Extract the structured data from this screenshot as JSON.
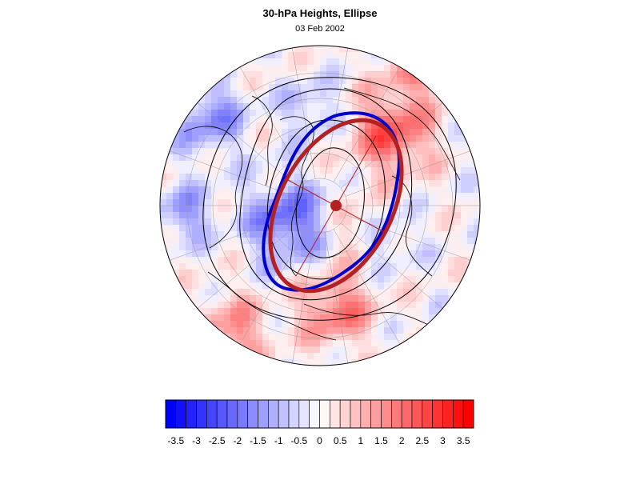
{
  "title": "30-hPa Heights, Ellipse",
  "date": "03 Feb 2002",
  "colorbar": {
    "tick_labels": [
      "-3.5",
      "-3",
      "-2.5",
      "-2",
      "-1.5",
      "-1",
      "-0.5",
      "0",
      "0.5",
      "1",
      "1.5",
      "2",
      "2.5",
      "3",
      "3.5"
    ],
    "min": -3.75,
    "max": 3.75,
    "step": 0.25,
    "negative_color": "#0000ff",
    "positive_color": "#ff0000"
  },
  "map": {
    "projection": "north polar stereographic",
    "field": "30-hPa height anomaly (shaded)",
    "contour_color": "#000000",
    "observed_ellipse_color": "#0000cc",
    "fitted_ellipse_color": "#b22222",
    "center_marker_color": "#b22222"
  }
}
